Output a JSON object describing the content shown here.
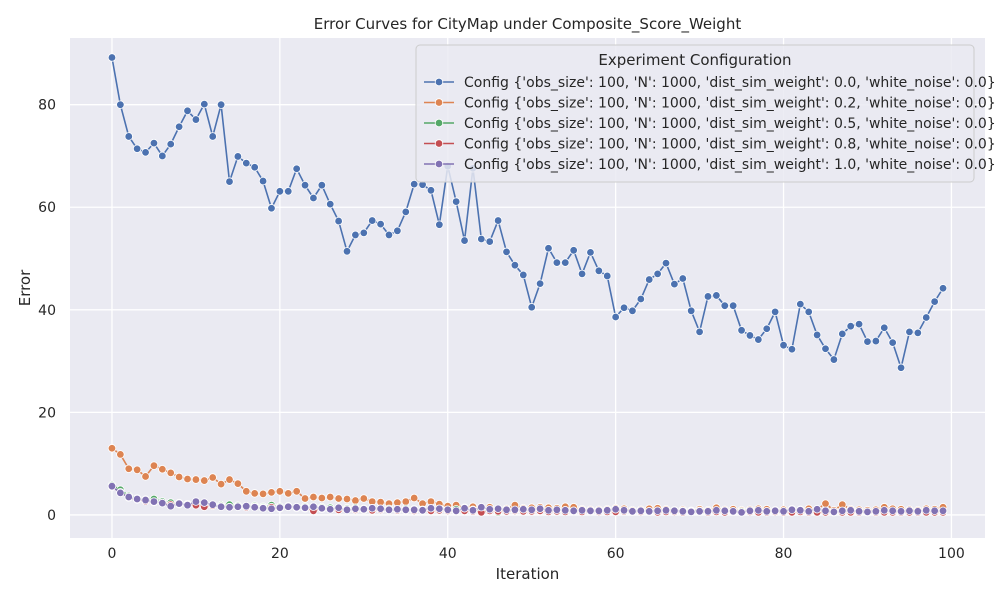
{
  "chart_data": {
    "type": "line",
    "title": "Error Curves for CityMap under Composite_Score_Weight",
    "xlabel": "Iteration",
    "ylabel": "Error",
    "xlim": [
      -5,
      104
    ],
    "ylim": [
      -4.5,
      93
    ],
    "xticks": [
      0,
      20,
      40,
      60,
      80,
      100
    ],
    "yticks": [
      0,
      20,
      40,
      60,
      80
    ],
    "grid": true,
    "background": "#eaeaf2",
    "legend": {
      "title": "Experiment Configuration",
      "placement": "top-right"
    },
    "x_start": 0,
    "series": [
      {
        "name": "Config {'obs_size': 100, 'N': 1000, 'dist_sim_weight': 0.0, 'white_noise': 0.0}",
        "color": "#4c72b0",
        "values": [
          89.2,
          80.0,
          73.8,
          71.4,
          70.7,
          72.5,
          70.0,
          72.3,
          75.7,
          78.8,
          77.1,
          80.1,
          73.8,
          80.0,
          65.0,
          69.9,
          68.6,
          67.8,
          65.1,
          59.8,
          63.1,
          63.1,
          67.5,
          64.3,
          61.8,
          64.3,
          60.6,
          57.3,
          51.4,
          54.6,
          55.0,
          57.4,
          56.7,
          54.6,
          55.4,
          59.1,
          64.5,
          64.4,
          63.3,
          56.6,
          68.0,
          61.1,
          53.5,
          67.6,
          53.8,
          53.3,
          57.4,
          51.3,
          48.7,
          46.8,
          40.5,
          45.1,
          52.0,
          49.2,
          49.2,
          51.6,
          47.0,
          51.2,
          47.6,
          46.6,
          38.6,
          40.4,
          39.8,
          42.1,
          45.9,
          47.0,
          49.1,
          45.0,
          46.1,
          39.8,
          35.7,
          42.6,
          42.8,
          40.8,
          40.8,
          36.0,
          35.0,
          34.2,
          36.3,
          39.6,
          33.1,
          32.3,
          41.1,
          39.6,
          35.1,
          32.4,
          30.3,
          35.3,
          36.8,
          37.2,
          33.8,
          33.9,
          36.5,
          33.6,
          28.7,
          35.7,
          35.5,
          38.5,
          41.6,
          44.2
        ]
      },
      {
        "name": "Config {'obs_size': 100, 'N': 1000, 'dist_sim_weight': 0.2, 'white_noise': 0.0}",
        "color": "#dd8452",
        "values": [
          13.0,
          11.8,
          9.0,
          8.8,
          7.5,
          9.6,
          8.9,
          8.2,
          7.4,
          7.0,
          6.9,
          6.7,
          7.3,
          6.0,
          6.9,
          6.1,
          4.6,
          4.2,
          4.1,
          4.4,
          4.6,
          4.2,
          4.6,
          3.2,
          3.5,
          3.3,
          3.5,
          3.2,
          3.1,
          2.8,
          3.2,
          2.6,
          2.5,
          2.2,
          2.4,
          2.6,
          3.3,
          2.2,
          2.6,
          2.1,
          1.7,
          1.9,
          1.4,
          1.6,
          1.2,
          1.5,
          1.1,
          1.2,
          1.9,
          1.3,
          1.4,
          1.5,
          1.4,
          1.3,
          1.6,
          1.5,
          1.1,
          1.0,
          1.0,
          1.1,
          1.3,
          1.2,
          0.9,
          1.0,
          1.2,
          1.3,
          1.1,
          0.9,
          1.0,
          0.8,
          1.1,
          0.9,
          1.4,
          1.0,
          1.1,
          0.9,
          1.0,
          1.2,
          1.1,
          0.9,
          1.0,
          1.1,
          1.0,
          1.2,
          1.1,
          2.2,
          0.9,
          2.0,
          1.1,
          1.0,
          0.9,
          1.0,
          1.5,
          1.2,
          1.1,
          1.0,
          0.9,
          1.2,
          1.1,
          1.5
        ]
      },
      {
        "name": "Config {'obs_size': 100, 'N': 1000, 'dist_sim_weight': 0.5, 'white_noise': 0.0}",
        "color": "#55a868",
        "values": [
          5.8,
          4.9,
          3.7,
          3.2,
          3.0,
          3.1,
          2.6,
          2.4,
          2.3,
          2.1,
          2.2,
          2.0,
          2.0,
          1.9,
          2.0,
          1.8,
          1.7,
          1.8,
          1.6,
          1.9,
          1.6,
          1.7,
          1.5,
          1.6,
          1.4,
          1.5,
          1.4,
          1.3,
          1.3,
          1.4,
          1.2,
          1.3,
          1.2,
          1.2,
          1.1,
          1.2,
          1.1,
          1.0,
          1.1,
          1.2,
          1.0,
          1.1,
          1.0,
          1.0,
          1.1,
          0.9,
          0.5,
          1.0,
          0.9,
          1.0,
          0.9,
          1.0,
          0.9,
          0.8,
          0.9,
          0.8,
          0.9,
          0.8,
          0.8,
          0.9,
          0.8,
          0.8,
          0.7,
          0.8,
          0.7,
          0.8,
          0.8,
          0.7,
          0.8,
          0.7,
          0.8,
          0.7,
          0.7,
          0.8,
          0.7,
          0.7,
          0.7,
          0.8,
          0.7,
          0.7,
          0.7,
          0.6,
          0.7,
          0.7,
          0.6,
          0.7,
          0.6,
          0.7,
          0.6,
          0.7,
          0.6,
          0.6,
          0.7,
          0.6,
          0.6,
          0.7,
          0.6,
          0.6,
          0.6,
          0.7
        ]
      },
      {
        "name": "Config {'obs_size': 100, 'N': 1000, 'dist_sim_weight': 0.8, 'white_noise': 0.0}",
        "color": "#c44e52",
        "values": [
          5.5,
          4.4,
          3.4,
          3.0,
          2.7,
          2.5,
          2.3,
          2.0,
          2.1,
          2.0,
          1.9,
          1.6,
          1.8,
          1.7,
          1.5,
          1.6,
          1.5,
          1.6,
          1.4,
          1.5,
          1.3,
          1.6,
          1.4,
          1.3,
          0.8,
          1.2,
          1.1,
          1.0,
          1.1,
          1.0,
          1.0,
          0.9,
          1.0,
          1.0,
          0.9,
          0.9,
          0.8,
          0.9,
          0.8,
          0.9,
          0.8,
          0.7,
          0.8,
          0.7,
          0.5,
          0.8,
          0.7,
          0.7,
          0.8,
          0.7,
          0.7,
          0.8,
          0.6,
          0.7,
          0.6,
          0.7,
          0.6,
          0.7,
          0.6,
          0.6,
          0.6,
          0.7,
          0.6,
          0.6,
          0.6,
          0.5,
          0.6,
          0.6,
          0.5,
          0.6,
          0.6,
          0.5,
          0.6,
          0.5,
          0.6,
          0.5,
          0.6,
          0.5,
          0.5,
          0.6,
          0.5,
          0.5,
          0.6,
          0.5,
          0.5,
          0.5,
          0.5,
          0.5,
          0.5,
          0.5,
          0.5,
          0.5,
          0.5,
          0.5,
          0.5,
          0.5,
          0.5,
          0.5,
          0.5,
          0.5
        ]
      },
      {
        "name": "Config {'obs_size': 100, 'N': 1000, 'dist_sim_weight': 1.0, 'white_noise': 0.0}",
        "color": "#8172b3",
        "values": [
          5.6,
          4.3,
          3.5,
          3.1,
          2.9,
          2.6,
          2.3,
          1.7,
          2.2,
          1.9,
          2.6,
          2.4,
          2.0,
          1.6,
          1.5,
          1.6,
          1.7,
          1.5,
          1.3,
          1.2,
          1.4,
          1.6,
          1.5,
          1.4,
          1.6,
          1.3,
          1.1,
          1.4,
          1.0,
          1.2,
          1.1,
          1.3,
          1.2,
          1.0,
          1.1,
          1.0,
          1.0,
          0.9,
          1.3,
          1.2,
          1.0,
          0.8,
          1.3,
          0.9,
          1.5,
          1.1,
          1.2,
          1.0,
          1.0,
          1.1,
          1.0,
          1.2,
          0.9,
          1.0,
          0.9,
          0.8,
          0.9,
          0.8,
          0.8,
          0.9,
          1.1,
          0.9,
          0.7,
          0.8,
          0.7,
          0.8,
          0.9,
          0.8,
          0.7,
          0.6,
          0.7,
          0.7,
          0.9,
          0.8,
          0.7,
          0.5,
          0.8,
          0.9,
          0.7,
          0.8,
          0.7,
          1.0,
          0.9,
          0.7,
          1.1,
          0.8,
          0.6,
          0.8,
          0.9,
          0.7,
          0.6,
          0.7,
          0.9,
          0.8,
          0.7,
          0.8,
          0.7,
          0.9,
          0.8,
          0.8
        ]
      }
    ]
  }
}
